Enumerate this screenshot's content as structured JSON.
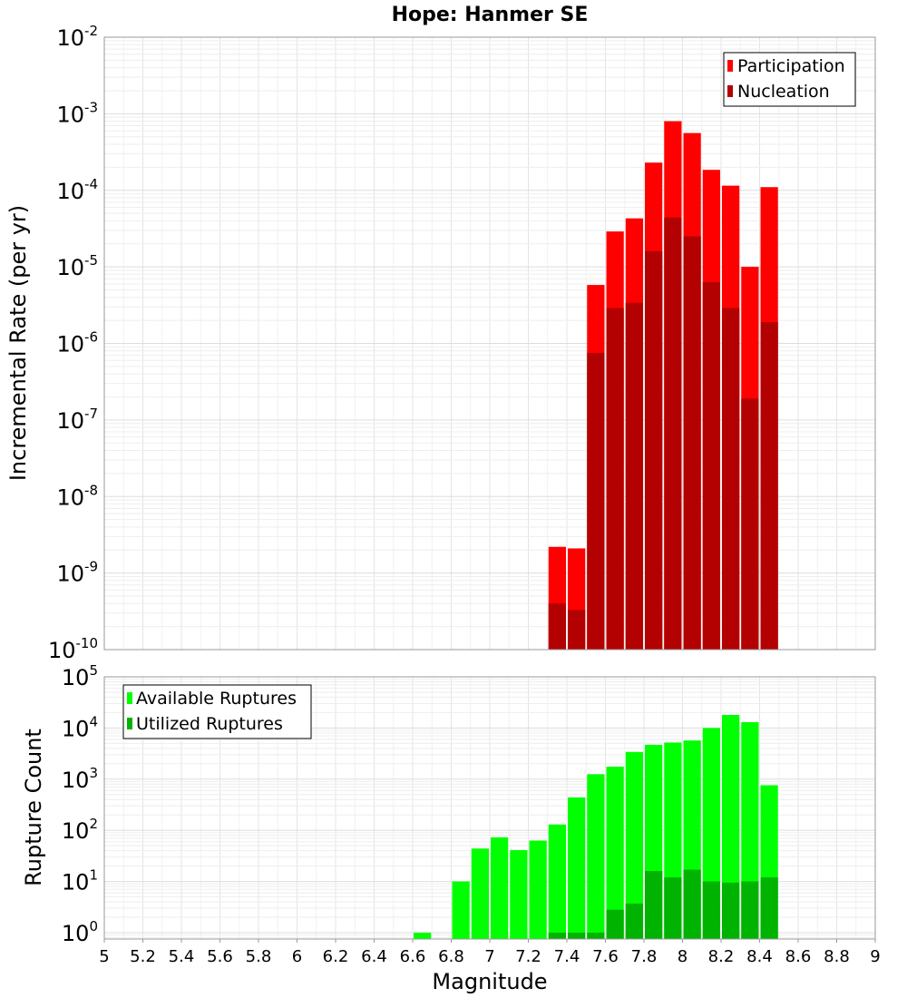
{
  "chart_data": [
    {
      "type": "bar",
      "title": "Hope: Hanmer SE",
      "ylabel": "Incremental Rate (per yr)",
      "xlabel": "",
      "yscale": "log",
      "ylim": [
        1e-10,
        0.01
      ],
      "xlim": [
        5,
        9
      ],
      "grid": true,
      "legend_position": "top-right",
      "y_tick_exponents": [
        "-10",
        "-9",
        "-8",
        "-7",
        "-6",
        "-5",
        "-4",
        "-3",
        "-2"
      ],
      "y_tick_base": "10",
      "bin_width": 0.1,
      "series": [
        {
          "name": "Participation",
          "color": "#ff0000",
          "x": [
            7.35,
            7.45,
            7.55,
            7.65,
            7.75,
            7.85,
            7.95,
            8.05,
            8.15,
            8.25,
            8.35,
            8.45
          ],
          "values": [
            2.2e-09,
            2.1e-09,
            5.8e-06,
            2.9e-05,
            4.3e-05,
            0.00023,
            0.0008,
            0.00056,
            0.000185,
            0.000115,
            1e-05,
            0.00011
          ]
        },
        {
          "name": "Nucleation",
          "color": "#b30000",
          "x": [
            7.35,
            7.45,
            7.55,
            7.65,
            7.75,
            7.85,
            7.95,
            8.05,
            8.15,
            8.25,
            8.35,
            8.45
          ],
          "values": [
            4e-10,
            3.3e-10,
            7.5e-07,
            2.9e-06,
            3.4e-06,
            1.6e-05,
            4.4e-05,
            2.5e-05,
            6.3e-06,
            2.9e-06,
            1.9e-07,
            1.9e-06
          ]
        }
      ]
    },
    {
      "type": "bar",
      "title": "",
      "ylabel": "Rupture Count",
      "xlabel": "Magnitude",
      "yscale": "log",
      "ylim": [
        0.75,
        100000.0
      ],
      "xlim": [
        5,
        9
      ],
      "grid": true,
      "legend_position": "top-left",
      "y_tick_exponents": [
        "0",
        "1",
        "2",
        "3",
        "4",
        "5"
      ],
      "y_tick_base": "10",
      "x_tick_labels": [
        "5",
        "5.2",
        "5.4",
        "5.6",
        "5.8",
        "6",
        "6.2",
        "6.4",
        "6.6",
        "6.8",
        "7",
        "7.2",
        "7.4",
        "7.6",
        "7.8",
        "8",
        "8.2",
        "8.4",
        "8.6",
        "8.8",
        "9"
      ],
      "bin_width": 0.1,
      "series": [
        {
          "name": "Available Ruptures",
          "color": "#00ff00",
          "x": [
            6.65,
            6.85,
            6.95,
            7.05,
            7.15,
            7.25,
            7.35,
            7.45,
            7.55,
            7.65,
            7.75,
            7.85,
            7.95,
            8.05,
            8.15,
            8.25,
            8.35,
            8.45
          ],
          "values": [
            1,
            10,
            44,
            73,
            41,
            63,
            130,
            440,
            1250,
            1750,
            3400,
            4700,
            5200,
            5700,
            10000,
            18000,
            13000,
            760
          ]
        },
        {
          "name": "Utilized Ruptures",
          "color": "#00b300",
          "x": [
            7.35,
            7.45,
            7.55,
            7.65,
            7.75,
            7.85,
            7.95,
            8.05,
            8.15,
            8.25,
            8.35,
            8.45
          ],
          "values": [
            1,
            1,
            1,
            2.8,
            3.7,
            16,
            12,
            17,
            10,
            9.5,
            10,
            12
          ]
        }
      ]
    }
  ]
}
